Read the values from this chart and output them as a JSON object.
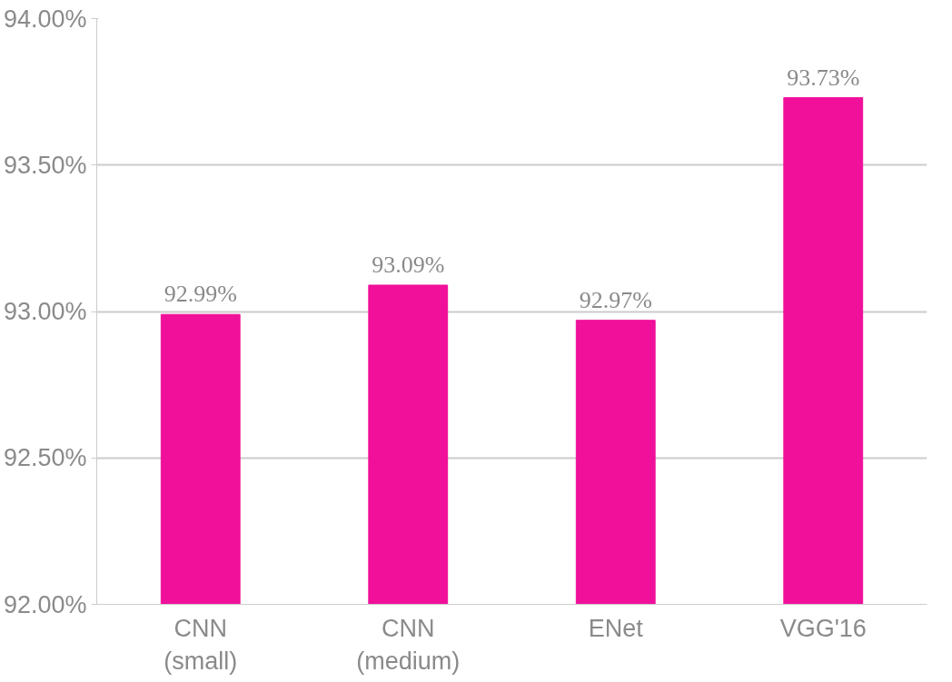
{
  "chart_data": {
    "type": "bar",
    "categories": [
      "CNN\n(small)",
      "CNN\n(medium)",
      "ENet",
      "VGG'16"
    ],
    "values": [
      92.99,
      93.09,
      92.97,
      93.73
    ],
    "value_labels": [
      "92.99%",
      "93.09%",
      "92.97%",
      "93.73%"
    ],
    "color": "#f0109a",
    "ylim": [
      92,
      94
    ],
    "yticks": [
      {
        "value": 92,
        "label": "92.00%"
      },
      {
        "value": 92.5,
        "label": "92.50%"
      },
      {
        "value": 93,
        "label": "93.00%"
      },
      {
        "value": 93.5,
        "label": "93.50%"
      },
      {
        "value": 94,
        "label": "94.00%"
      }
    ],
    "grid": "y"
  }
}
